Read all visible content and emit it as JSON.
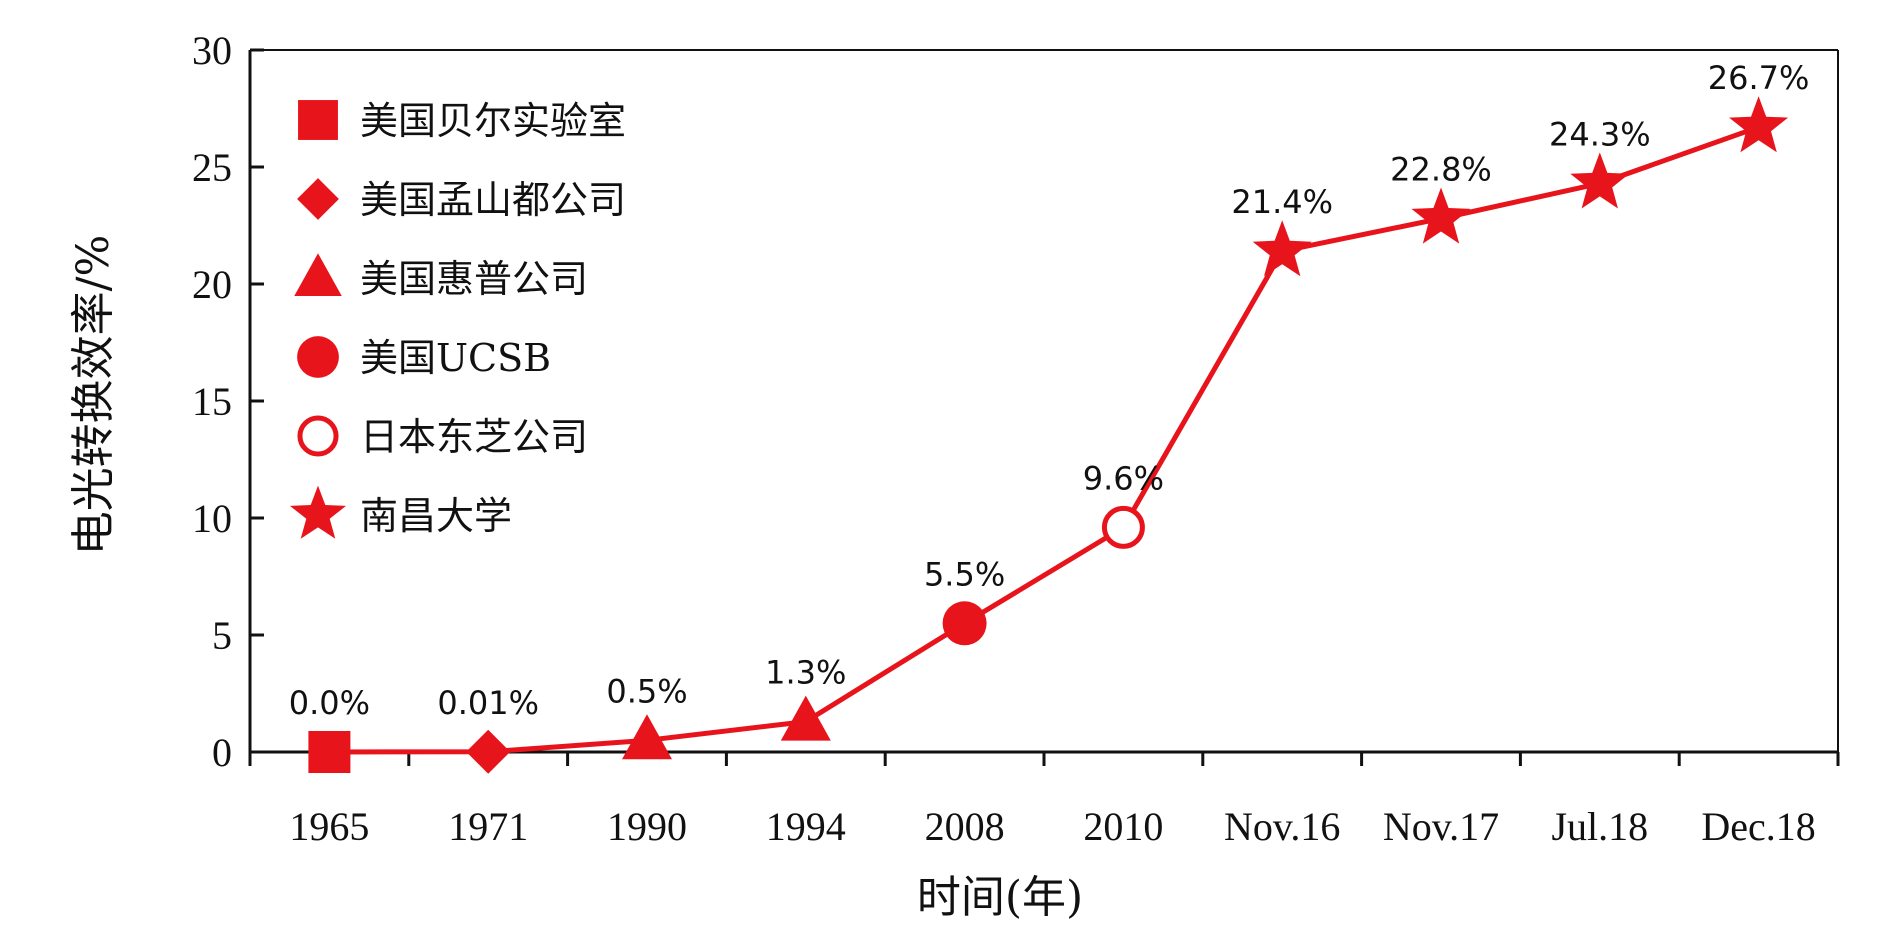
{
  "chart_data": {
    "type": "line",
    "xlabel": "时间(年)",
    "ylabel": "电光转换效率/%",
    "ylim": [
      0,
      30
    ],
    "yticks": [
      0,
      5,
      10,
      15,
      20,
      25,
      30
    ],
    "grid": false,
    "legend_position": "top-left",
    "line_color": "#e8141c",
    "categories": [
      "1965",
      "1971",
      "1990",
      "1994",
      "2008",
      "2010",
      "Nov.16",
      "Nov.17",
      "Jul.18",
      "Dec.18"
    ],
    "values": [
      0.0,
      0.01,
      0.5,
      1.3,
      5.5,
      9.6,
      21.4,
      22.8,
      24.3,
      26.7
    ],
    "data_labels": [
      "0.0%",
      "0.01%",
      "0.5%",
      "1.3%",
      "5.5%",
      "9.6%",
      "21.4%",
      "22.8%",
      "24.3%",
      "26.7%"
    ],
    "markers": [
      "square",
      "diamond",
      "triangle",
      "triangle",
      "circle",
      "circle-open",
      "star",
      "star",
      "star",
      "star"
    ],
    "legend": [
      {
        "label": "美国贝尔实验室",
        "marker": "square"
      },
      {
        "label": "美国孟山都公司",
        "marker": "diamond"
      },
      {
        "label": "美国惠普公司",
        "marker": "triangle"
      },
      {
        "label": "美国UCSB",
        "marker": "circle"
      },
      {
        "label": "日本东芝公司",
        "marker": "circle-open"
      },
      {
        "label": "南昌大学",
        "marker": "star"
      }
    ]
  }
}
